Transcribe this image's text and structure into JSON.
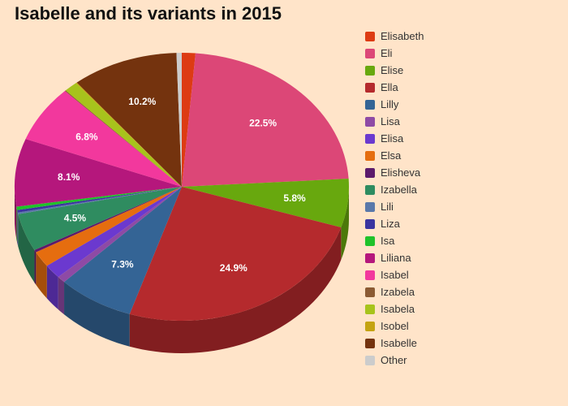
{
  "chart_data": {
    "type": "pie",
    "title": "Isabelle and its variants in 2015",
    "legend_position": "right",
    "slices": [
      {
        "label": "Elisabeth",
        "value": 1.3,
        "color": "#dd3b13",
        "display": ""
      },
      {
        "label": "Eli",
        "value": 22.5,
        "color": "#dc4777",
        "display": "22.5%"
      },
      {
        "label": "Elise",
        "value": 5.8,
        "color": "#68a80e",
        "display": "5.8%"
      },
      {
        "label": "Ella",
        "value": 24.9,
        "color": "#b52a2d",
        "display": "24.9%"
      },
      {
        "label": "Lilly",
        "value": 7.3,
        "color": "#346495",
        "display": "7.3%"
      },
      {
        "label": "Lisa",
        "value": 0.8,
        "color": "#8e4aa5",
        "display": ""
      },
      {
        "label": "Elisa",
        "value": 1.7,
        "color": "#6b39cf",
        "display": ""
      },
      {
        "label": "Elsa",
        "value": 1.9,
        "color": "#e56d0f",
        "display": ""
      },
      {
        "label": "Elisheva",
        "value": 0.3,
        "color": "#5c1a6b",
        "display": ""
      },
      {
        "label": "Izabella",
        "value": 4.5,
        "color": "#2f8c60",
        "display": "4.5%"
      },
      {
        "label": "Lili",
        "value": 0.2,
        "color": "#5a78aa",
        "display": ""
      },
      {
        "label": "Liza",
        "value": 0.3,
        "color": "#3a34a0",
        "display": ""
      },
      {
        "label": "Isa",
        "value": 0.4,
        "color": "#1fc22a",
        "display": ""
      },
      {
        "label": "Liliana",
        "value": 8.1,
        "color": "#b5177c",
        "display": "8.1%"
      },
      {
        "label": "Isabel",
        "value": 6.8,
        "color": "#f2389d",
        "display": "6.8%"
      },
      {
        "label": "Izabela",
        "value": 0.1,
        "color": "#8b5a33",
        "display": ""
      },
      {
        "label": "Isabela",
        "value": 1.3,
        "color": "#a7c31c",
        "display": ""
      },
      {
        "label": "Isobel",
        "value": 0.1,
        "color": "#c4a312",
        "display": ""
      },
      {
        "label": "Isabelle",
        "value": 10.2,
        "color": "#74330e",
        "display": "10.2%"
      },
      {
        "label": "Other",
        "value": 0.5,
        "color": "#cccccc",
        "display": ""
      }
    ]
  }
}
